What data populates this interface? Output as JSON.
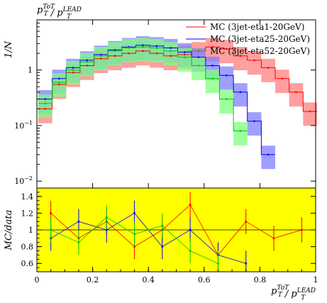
{
  "chart_data": [
    {
      "type": "line",
      "title": "",
      "title_rich": {
        "base": "p",
        "sup1": "ToT",
        "sub1": "T",
        "sep": " / ",
        "base2": "p",
        "sup2": "LEAD",
        "sub2": "T"
      },
      "xlabel": "",
      "ylabel": "1/N",
      "xlim": [
        0,
        1
      ],
      "ylim": [
        0.0075,
        8
      ],
      "yscale": "log",
      "yticks": [
        0.01,
        0.1,
        1
      ],
      "ytick_labels": [
        {
          "base": "10",
          "exp": "−2"
        },
        {
          "base": "10",
          "exp": "−1"
        },
        {
          "base": "1",
          "exp": ""
        }
      ],
      "legend_position": "top-right",
      "series": [
        {
          "name": "MC (3jet-eta1-20GeV)",
          "color": "#ff0000",
          "fill": "#ff7f7f",
          "x": [
            0.03,
            0.08,
            0.13,
            0.18,
            0.23,
            0.28,
            0.33,
            0.38,
            0.43,
            0.48,
            0.53,
            0.58,
            0.63,
            0.68,
            0.73,
            0.78,
            0.83,
            0.88,
            0.93,
            0.98
          ],
          "y": [
            0.2,
            0.55,
            0.9,
            1.2,
            1.6,
            1.8,
            2.0,
            2.2,
            2.0,
            1.8,
            1.9,
            2.2,
            2.6,
            2.4,
            1.8,
            1.5,
            1.1,
            0.7,
            0.4,
            0.18
          ]
        },
        {
          "name": "MC (3jet-eta25-20GeV)",
          "color": "#0000ff",
          "fill": "#7f7fff",
          "x": [
            0.03,
            0.08,
            0.13,
            0.18,
            0.23,
            0.28,
            0.33,
            0.38,
            0.43,
            0.48,
            0.53,
            0.58,
            0.63,
            0.68,
            0.73,
            0.78,
            0.83
          ],
          "y": [
            0.3,
            0.7,
            1.1,
            1.5,
            1.9,
            2.3,
            2.6,
            2.8,
            2.7,
            2.5,
            2.1,
            1.7,
            1.2,
            0.8,
            0.4,
            0.12,
            0.03
          ]
        },
        {
          "name": "MC (3jet-eta52-20GeV)",
          "color": "#00cc00",
          "fill": "#7fff7f",
          "x": [
            0.03,
            0.08,
            0.13,
            0.18,
            0.23,
            0.28,
            0.33,
            0.38,
            0.43,
            0.48,
            0.53,
            0.58,
            0.63,
            0.68,
            0.73
          ],
          "y": [
            0.25,
            0.6,
            1.0,
            1.4,
            1.8,
            2.2,
            2.5,
            2.6,
            2.5,
            2.2,
            1.7,
            1.2,
            0.7,
            0.3,
            0.08
          ]
        }
      ]
    },
    {
      "type": "line",
      "title": "",
      "xlabel_rich": {
        "base": "p",
        "sup1": "ToT",
        "sub1": "T",
        "sep": " / ",
        "base2": "p",
        "sup2": "LEAD",
        "sub2": "T"
      },
      "ylabel": "MC/data",
      "xlim": [
        0,
        1
      ],
      "ylim": [
        0.5,
        1.5
      ],
      "xticks": [
        0,
        0.2,
        0.4,
        0.6,
        0.8,
        1
      ],
      "xtick_labels": [
        "0",
        "0.2",
        "0.4",
        "0.6",
        "0.8",
        "1"
      ],
      "yticks": [
        0.6,
        0.8,
        1,
        1.2,
        1.4
      ],
      "ytick_labels": [
        "0.6",
        "0.8",
        "1",
        "1.2",
        "1.4"
      ],
      "reference_line": 1,
      "band_color": "#ffff00",
      "series": [
        {
          "name": "",
          "color": "#ff0000",
          "x": [
            0.05,
            0.15,
            0.25,
            0.35,
            0.45,
            0.55,
            0.65,
            0.75,
            0.85,
            0.95
          ],
          "y": [
            1.2,
            0.9,
            1.1,
            0.8,
            1.0,
            1.3,
            0.7,
            1.1,
            0.9,
            1.0
          ]
        },
        {
          "name": "",
          "color": "#0000ff",
          "x": [
            0.05,
            0.15,
            0.25,
            0.35,
            0.45,
            0.55,
            0.65,
            0.75
          ],
          "y": [
            0.9,
            1.1,
            1.0,
            1.2,
            0.8,
            1.0,
            0.7,
            0.6
          ]
        },
        {
          "name": "",
          "color": "#00cc00",
          "x": [
            0.05,
            0.15,
            0.25,
            0.35,
            0.45,
            0.55,
            0.65
          ],
          "y": [
            1.0,
            0.85,
            1.15,
            0.95,
            1.05,
            0.75,
            0.6
          ]
        }
      ]
    }
  ]
}
